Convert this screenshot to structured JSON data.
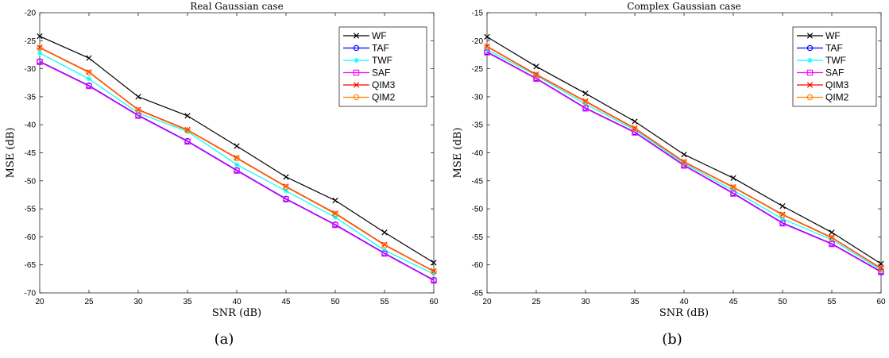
{
  "colors": {
    "WF": "#000000",
    "TAF": "#0000ff",
    "TWF": "#00ffff",
    "SAF": "#ff00ff",
    "QIM3": "#ff0000",
    "QIM2": "#ff8000"
  },
  "chart_data": [
    {
      "type": "line",
      "title": "Real Gaussian case",
      "caption": "(a)",
      "xlabel": "SNR (dB)",
      "ylabel": "MSE (dB)",
      "xlim": [
        20,
        60
      ],
      "ylim": [
        -70,
        -20
      ],
      "xticks": [
        20,
        25,
        30,
        35,
        40,
        45,
        50,
        55,
        60
      ],
      "yticks": [
        -70,
        -65,
        -60,
        -55,
        -50,
        -45,
        -40,
        -35,
        -30,
        -25,
        -20
      ],
      "grid": false,
      "legend_position": "top-right",
      "x": [
        20,
        25,
        30,
        35,
        40,
        45,
        50,
        55,
        60
      ],
      "series": [
        {
          "name": "WF",
          "marker": "x",
          "values": [
            -24.2,
            -28.1,
            -35.0,
            -38.4,
            -43.8,
            -49.3,
            -53.5,
            -59.2,
            -64.6
          ]
        },
        {
          "name": "TAF",
          "marker": "o",
          "values": [
            -28.7,
            -33.0,
            -38.3,
            -42.9,
            -48.1,
            -53.2,
            -57.8,
            -62.9,
            -67.7
          ]
        },
        {
          "name": "TWF",
          "marker": "*",
          "values": [
            -27.2,
            -31.8,
            -37.9,
            -41.2,
            -47.1,
            -51.8,
            -56.5,
            -62.4,
            -66.6
          ]
        },
        {
          "name": "SAF",
          "marker": "s",
          "values": [
            -28.8,
            -33.1,
            -38.4,
            -43.0,
            -48.2,
            -53.3,
            -57.9,
            -63.0,
            -67.8
          ]
        },
        {
          "name": "QIM3",
          "marker": "x",
          "values": [
            -26.2,
            -30.6,
            -37.3,
            -40.9,
            -45.9,
            -51.0,
            -55.8,
            -61.4,
            -66.1
          ]
        },
        {
          "name": "QIM2",
          "marker": "o",
          "values": [
            -26.3,
            -30.7,
            -37.4,
            -41.0,
            -46.0,
            -51.1,
            -55.9,
            -61.5,
            -66.2
          ]
        }
      ]
    },
    {
      "type": "line",
      "title": "Complex Gaussian case",
      "caption": "(b)",
      "xlabel": "SNR (dB)",
      "ylabel": "MSE (dB)",
      "xlim": [
        20,
        60
      ],
      "ylim": [
        -65,
        -15
      ],
      "xticks": [
        20,
        25,
        30,
        35,
        40,
        45,
        50,
        55,
        60
      ],
      "yticks": [
        -65,
        -60,
        -55,
        -50,
        -45,
        -40,
        -35,
        -30,
        -25,
        -20,
        -15
      ],
      "grid": false,
      "legend_position": "top-right",
      "x": [
        20,
        25,
        30,
        35,
        40,
        45,
        50,
        55,
        60
      ],
      "series": [
        {
          "name": "WF",
          "marker": "x",
          "values": [
            -19.3,
            -24.6,
            -29.4,
            -34.4,
            -40.3,
            -44.5,
            -49.5,
            -54.2,
            -59.8
          ]
        },
        {
          "name": "TAF",
          "marker": "o",
          "values": [
            -22.0,
            -26.7,
            -32.0,
            -36.3,
            -42.2,
            -47.2,
            -52.5,
            -56.2,
            -61.2
          ]
        },
        {
          "name": "TWF",
          "marker": "*",
          "values": [
            -21.6,
            -26.2,
            -31.3,
            -35.9,
            -41.9,
            -46.7,
            -51.8,
            -55.5,
            -60.9
          ]
        },
        {
          "name": "SAF",
          "marker": "s",
          "values": [
            -22.1,
            -26.8,
            -32.1,
            -36.4,
            -42.3,
            -47.3,
            -52.6,
            -56.3,
            -61.3
          ]
        },
        {
          "name": "QIM3",
          "marker": "x",
          "values": [
            -21.0,
            -26.0,
            -30.8,
            -35.6,
            -41.6,
            -46.1,
            -51.0,
            -55.1,
            -60.6
          ]
        },
        {
          "name": "QIM2",
          "marker": "o",
          "values": [
            -21.1,
            -26.1,
            -30.9,
            -35.7,
            -41.7,
            -46.2,
            -51.1,
            -55.2,
            -60.7
          ]
        }
      ]
    }
  ]
}
